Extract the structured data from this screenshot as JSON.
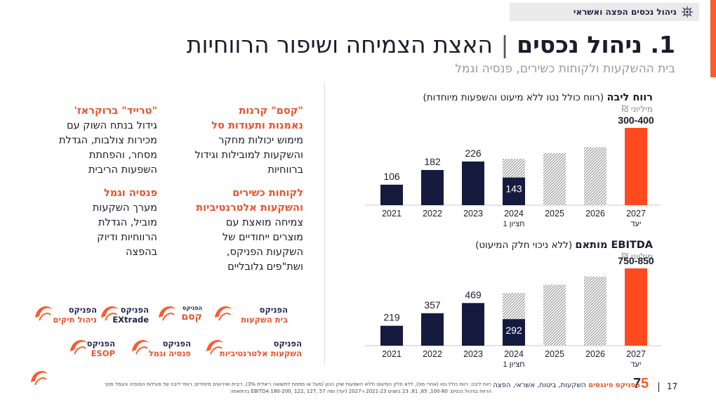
{
  "header": {
    "section_label": "ניהול נכסים הפצה ואשראי",
    "title_number": "1. ניהול נכסים",
    "title_sep": "|",
    "title_rest": "האצת הצמיחה ושיפור הרווחיות",
    "subtitle": "בית ההשקעות ולקוחות כשירים, פנסיה וגמל"
  },
  "blocks": {
    "kesem": {
      "head1": "\"קסם\" קרנות",
      "head2": "נאמנות ותעודות סל",
      "lines": [
        "מימוש יכולות מחקר",
        "והשקעות למובילות וגידול",
        "ברווחיות"
      ]
    },
    "trade": {
      "head1": "\"טרייד\" ברוקראז'",
      "lines": [
        "גידול בנתח השוק עם",
        "מכירות צולבות, הגדלת",
        "מסחר, והפחתת",
        "השפעות הריבית"
      ]
    },
    "qualified": {
      "head1": "לקוחות כשירים",
      "head2": "והשקעות אלטרנטיביות",
      "lines": [
        "צמיחה מואצת עם",
        "מוצרים ייחודיים של",
        "השקעות הפניקס,",
        "ושת\"פים גלובליים"
      ]
    },
    "pension": {
      "head1": "פנסיה וגמל",
      "lines": [
        "מערך השקעות",
        "מוביל, הגדלת",
        "הרווחיות ודיוק",
        "בהפצה"
      ]
    }
  },
  "logos": [
    {
      "brand": "הפניקס",
      "sub": "ניהול תיקים"
    },
    {
      "brand": "הפניקס",
      "sub": "EXtrade"
    },
    {
      "brand": "הפניקס",
      "sub": "קסם"
    },
    {
      "brand": "הפניקס",
      "sub": "בית השקעות"
    },
    {
      "brand": "הפניקס",
      "sub": "ESOP"
    },
    {
      "brand": "הפניקס",
      "sub": "פנסיה וגמל"
    },
    {
      "brand": "הפניקס",
      "sub": "השקעות אלטרנטיביות"
    }
  ],
  "chart_data": [
    {
      "type": "bar",
      "title": "רווח ליבה",
      "title_note": "(רווח כולל נטו ללא מיעוט והשפעות מיוחדות)",
      "unit": "מיליוני ₪",
      "categories": [
        "2021",
        "2022",
        "2023",
        "2024",
        "2025",
        "2026",
        "2027"
      ],
      "category_notes": [
        "",
        "",
        "",
        "חציון 1",
        "",
        "",
        "יעד"
      ],
      "values": [
        106,
        182,
        226,
        143,
        null,
        null,
        400
      ],
      "value_labels": [
        "106",
        "182",
        "226",
        "143",
        "",
        "",
        "300-400"
      ],
      "hatched_projection_levels": [
        null,
        null,
        null,
        240,
        270,
        300,
        null
      ],
      "colors": {
        "actual": "#151a3f",
        "target": "#ff4a1f",
        "hatch": "#888888"
      }
    },
    {
      "type": "bar",
      "title": "EBITDA מותאם",
      "title_note": "(ללא ניכוי חלק המיעוט)",
      "unit": "מיליוני ₪",
      "categories": [
        "2021",
        "2022",
        "2023",
        "2024",
        "2025",
        "2026",
        "2027"
      ],
      "category_notes": [
        "",
        "",
        "",
        "חציון 1",
        "",
        "",
        "יעד"
      ],
      "values": [
        219,
        357,
        469,
        292,
        null,
        null,
        850
      ],
      "value_labels": [
        "219",
        "357",
        "469",
        "292",
        "",
        "",
        "750-850"
      ],
      "hatched_projection_levels": [
        null,
        null,
        null,
        580,
        670,
        760,
        null
      ],
      "colors": {
        "actual": "#151a3f",
        "target": "#ff4a1f",
        "hatch": "#888888"
      }
    }
  ],
  "footer": {
    "page_number": "17",
    "brand_bold": "הפניקס פיננסים",
    "brand_rest": "השקעות, ביטוח, אשראי, הפצה",
    "note_line1": "רווח ליבה: רווח כולל נטו (אחרי מס), ללא חלק המיעוט וללא השפעות שוק ההון (מעל או מתחת לתשואה ריאלית 3%), ריבית ואירועים מיוחדים; רווחי ליבה של פעילות הפנסיה והגמל מסך",
    "note_line2": "הרווח בניהול נכסים: 100-80, 65, 81, 23 בשנים 2021-23 ו-2027 (יעד) ומה EBITDA 180-200, 122, 127, 57 בהתאמה"
  }
}
